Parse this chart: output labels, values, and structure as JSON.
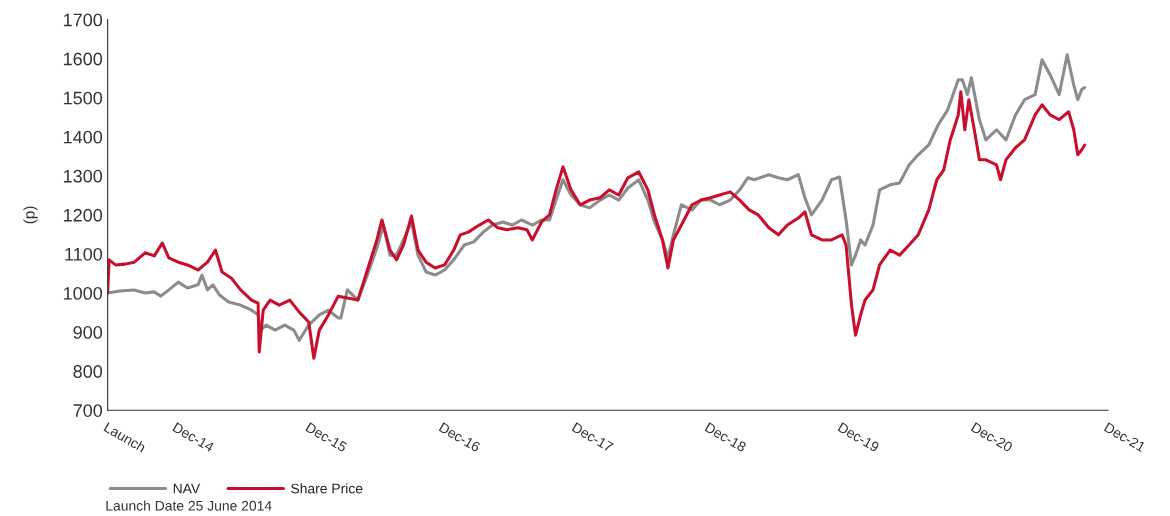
{
  "chart_data": {
    "type": "line",
    "ylabel": "(p)",
    "legend": "bottom",
    "grid": false,
    "marker": "none",
    "line_style": "solid",
    "ylim": [
      700,
      1700
    ],
    "yticks": [
      700,
      800,
      900,
      1000,
      1100,
      1200,
      1300,
      1400,
      1500,
      1600,
      1700
    ],
    "xlim": [
      "2014-06-25",
      "2021-12-31"
    ],
    "xticks": [
      {
        "value": "2014-06-25",
        "label": "Launch"
      },
      {
        "value": "2014-12-31",
        "label": "Dec-14"
      },
      {
        "value": "2015-12-31",
        "label": "Dec-15"
      },
      {
        "value": "2016-12-31",
        "label": "Dec-16"
      },
      {
        "value": "2017-12-31",
        "label": "Dec-17"
      },
      {
        "value": "2018-12-31",
        "label": "Dec-18"
      },
      {
        "value": "2019-12-31",
        "label": "Dec-19"
      },
      {
        "value": "2020-12-31",
        "label": "Dec-20"
      },
      {
        "value": "2021-12-31",
        "label": "Dec-21"
      }
    ],
    "annotations": [
      "Launch Date 25 June 2014"
    ],
    "series": [
      {
        "name": "NAV",
        "color": "#8c8c8c",
        "x": [
          "2014-06-25",
          "2014-07-28",
          "2014-09-06",
          "2014-10-06",
          "2014-10-31",
          "2014-11-18",
          "2014-12-10",
          "2015-01-05",
          "2015-01-30",
          "2015-02-28",
          "2015-03-11",
          "2015-03-26",
          "2015-04-10",
          "2015-04-28",
          "2015-05-23",
          "2015-06-25",
          "2015-07-25",
          "2015-08-12",
          "2015-08-19",
          "2015-09-03",
          "2015-09-28",
          "2015-10-24",
          "2015-11-18",
          "2015-12-03",
          "2015-12-29",
          "2016-01-27",
          "2016-02-21",
          "2016-03-19",
          "2016-03-26",
          "2016-04-13",
          "2016-05-12",
          "2016-06-07",
          "2016-07-03",
          "2016-07-21",
          "2016-08-08",
          "2016-08-26",
          "2016-09-14",
          "2016-10-06",
          "2016-10-24",
          "2016-11-15",
          "2016-12-10",
          "2017-01-05",
          "2017-01-30",
          "2017-02-28",
          "2017-03-26",
          "2017-04-21",
          "2017-05-16",
          "2017-06-14",
          "2017-07-10",
          "2017-08-04",
          "2017-09-03",
          "2017-09-28",
          "2017-10-20",
          "2017-11-07",
          "2017-11-26",
          "2017-12-18",
          "2018-01-12",
          "2018-02-07",
          "2018-03-08",
          "2018-04-02",
          "2018-04-28",
          "2018-05-23",
          "2018-06-22",
          "2018-07-17",
          "2018-08-04",
          "2018-08-26",
          "2018-09-10",
          "2018-09-25",
          "2018-10-17",
          "2018-11-15",
          "2018-12-10",
          "2019-01-05",
          "2019-01-30",
          "2019-02-28",
          "2019-03-26",
          "2019-04-17",
          "2019-05-05",
          "2019-06-14",
          "2019-07-10",
          "2019-08-04",
          "2019-09-03",
          "2019-09-21",
          "2019-10-09",
          "2019-11-07",
          "2019-12-03",
          "2019-12-25",
          "2020-01-12",
          "2020-01-27",
          "2020-02-07",
          "2020-02-21",
          "2020-03-04",
          "2020-03-26",
          "2020-04-13",
          "2020-05-12",
          "2020-06-07",
          "2020-07-03",
          "2020-07-28",
          "2020-08-26",
          "2020-09-21",
          "2020-10-17",
          "2020-11-15",
          "2020-11-26",
          "2020-12-10",
          "2020-12-21",
          "2021-01-12",
          "2021-01-30",
          "2021-02-28",
          "2021-03-26",
          "2021-04-21",
          "2021-05-16",
          "2021-06-14",
          "2021-07-03",
          "2021-07-25",
          "2021-08-19",
          "2021-09-10",
          "2021-09-28",
          "2021-10-09",
          "2021-10-20",
          "2021-10-28"
        ],
        "values": [
          1000,
          1005,
          1008,
          1000,
          1003,
          992,
          1008,
          1028,
          1013,
          1021,
          1046,
          1008,
          1021,
          995,
          977,
          969,
          956,
          944,
          905,
          918,
          905,
          918,
          905,
          879,
          918,
          944,
          956,
          936,
          936,
          1008,
          982,
          1046,
          1115,
          1174,
          1097,
          1097,
          1136,
          1182,
          1097,
          1054,
          1046,
          1059,
          1085,
          1123,
          1131,
          1156,
          1174,
          1182,
          1174,
          1187,
          1174,
          1187,
          1187,
          1238,
          1290,
          1251,
          1226,
          1218,
          1238,
          1251,
          1238,
          1269,
          1290,
          1238,
          1182,
          1136,
          1090,
          1149,
          1226,
          1213,
          1238,
          1238,
          1226,
          1238,
          1264,
          1295,
          1290,
          1303,
          1295,
          1290,
          1303,
          1244,
          1200,
          1238,
          1290,
          1297,
          1187,
          1072,
          1097,
          1136,
          1123,
          1174,
          1264,
          1277,
          1282,
          1328,
          1354,
          1379,
          1431,
          1469,
          1546,
          1546,
          1508,
          1551,
          1444,
          1392,
          1418,
          1392,
          1456,
          1495,
          1508,
          1597,
          1559,
          1508,
          1610,
          1533,
          1495,
          1521,
          1526
        ]
      },
      {
        "name": "Share Price",
        "color": "#c8102e",
        "x": [
          "2014-06-25",
          "2014-06-29",
          "2014-07-17",
          "2014-08-12",
          "2014-09-06",
          "2014-10-06",
          "2014-10-31",
          "2014-11-22",
          "2014-12-10",
          "2015-01-05",
          "2015-01-30",
          "2015-02-28",
          "2015-03-26",
          "2015-04-17",
          "2015-05-05",
          "2015-05-31",
          "2015-06-25",
          "2015-07-25",
          "2015-08-12",
          "2015-08-15",
          "2015-08-26",
          "2015-09-14",
          "2015-10-09",
          "2015-11-07",
          "2015-12-03",
          "2015-12-29",
          "2016-01-12",
          "2016-01-27",
          "2016-02-21",
          "2016-03-19",
          "2016-04-13",
          "2016-05-12",
          "2016-06-07",
          "2016-07-03",
          "2016-07-17",
          "2016-08-08",
          "2016-08-26",
          "2016-09-14",
          "2016-10-06",
          "2016-10-24",
          "2016-11-15",
          "2016-12-10",
          "2017-01-05",
          "2017-01-30",
          "2017-02-17",
          "2017-03-11",
          "2017-04-10",
          "2017-05-05",
          "2017-05-31",
          "2017-06-25",
          "2017-07-25",
          "2017-08-19",
          "2017-09-03",
          "2017-09-28",
          "2017-10-20",
          "2017-11-07",
          "2017-11-26",
          "2017-12-18",
          "2018-01-12",
          "2018-02-07",
          "2018-03-08",
          "2018-04-02",
          "2018-04-28",
          "2018-05-23",
          "2018-06-22",
          "2018-07-17",
          "2018-08-04",
          "2018-08-26",
          "2018-09-10",
          "2018-09-25",
          "2018-10-17",
          "2018-11-15",
          "2018-12-10",
          "2019-01-05",
          "2019-01-30",
          "2019-02-28",
          "2019-03-26",
          "2019-04-21",
          "2019-05-16",
          "2019-06-14",
          "2019-07-10",
          "2019-08-04",
          "2019-09-03",
          "2019-09-21",
          "2019-10-09",
          "2019-11-07",
          "2019-12-03",
          "2020-01-01",
          "2020-01-12",
          "2020-01-27",
          "2020-02-07",
          "2020-02-21",
          "2020-03-04",
          "2020-03-26",
          "2020-04-13",
          "2020-05-12",
          "2020-06-07",
          "2020-07-03",
          "2020-07-28",
          "2020-08-26",
          "2020-09-17",
          "2020-10-06",
          "2020-10-24",
          "2020-11-15",
          "2020-11-22",
          "2020-12-03",
          "2020-12-14",
          "2020-12-29",
          "2021-01-12",
          "2021-01-30",
          "2021-02-28",
          "2021-03-11",
          "2021-03-26",
          "2021-04-21",
          "2021-05-16",
          "2021-06-14",
          "2021-07-03",
          "2021-07-25",
          "2021-08-19",
          "2021-09-14",
          "2021-09-28",
          "2021-10-09",
          "2021-10-20",
          "2021-10-28"
        ],
        "values": [
          1000,
          1085,
          1072,
          1074,
          1079,
          1103,
          1095,
          1128,
          1090,
          1079,
          1072,
          1059,
          1079,
          1110,
          1054,
          1038,
          1008,
          982,
          974,
          849,
          956,
          982,
          969,
          982,
          951,
          926,
          833,
          905,
          944,
          992,
          987,
          982,
          1059,
          1136,
          1187,
          1110,
          1085,
          1123,
          1197,
          1110,
          1079,
          1064,
          1072,
          1110,
          1149,
          1156,
          1174,
          1187,
          1167,
          1162,
          1167,
          1162,
          1136,
          1182,
          1200,
          1264,
          1323,
          1264,
          1226,
          1238,
          1244,
          1264,
          1251,
          1295,
          1310,
          1264,
          1200,
          1136,
          1064,
          1136,
          1174,
          1226,
          1238,
          1244,
          1251,
          1259,
          1238,
          1213,
          1200,
          1167,
          1149,
          1174,
          1192,
          1208,
          1149,
          1136,
          1136,
          1149,
          1123,
          969,
          892,
          944,
          982,
          1008,
          1072,
          1110,
          1097,
          1123,
          1149,
          1213,
          1290,
          1315,
          1392,
          1456,
          1515,
          1418,
          1495,
          1418,
          1341,
          1341,
          1328,
          1290,
          1341,
          1372,
          1392,
          1456,
          1482,
          1456,
          1444,
          1464,
          1418,
          1354,
          1367,
          1379
        ]
      }
    ]
  }
}
